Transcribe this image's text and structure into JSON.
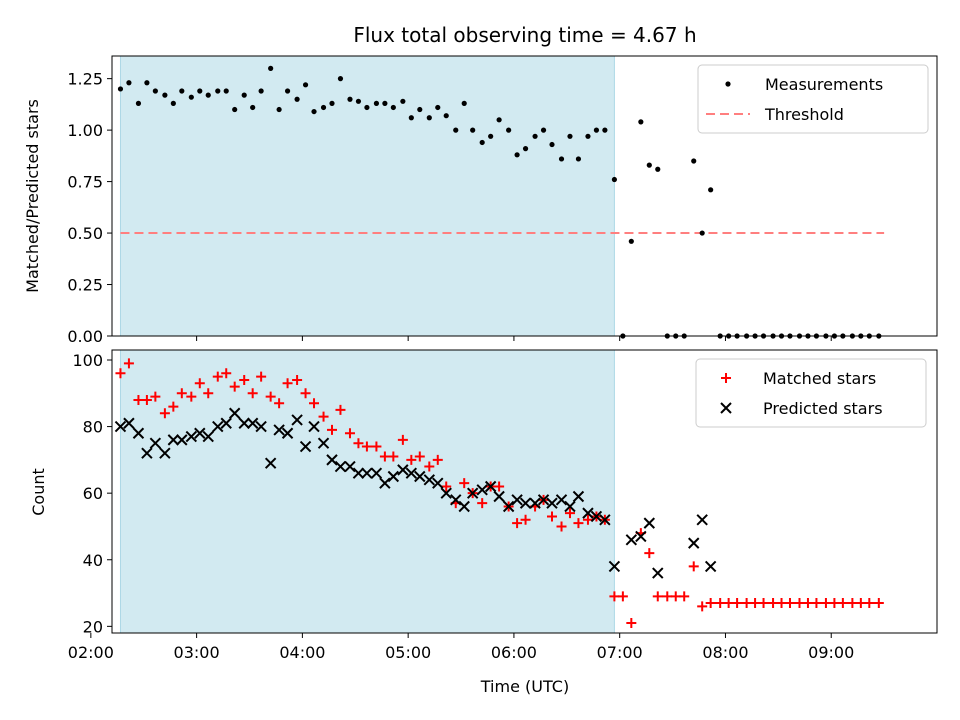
{
  "title": "Flux total observing time = 4.67 h",
  "colors": {
    "shade": "#add8e6",
    "measurement": "#000000",
    "threshold": "#ff7f7f",
    "matched": "#ff0000",
    "predicted": "#000000"
  },
  "chart_data": [
    {
      "type": "scatter",
      "name": "ratio-panel",
      "ylabel": "Matched/Predicted stars",
      "xlabel": "",
      "xlim": [
        2.2,
        10.0
      ],
      "ylim": [
        0.0,
        1.36
      ],
      "yticks": [
        0.0,
        0.25,
        0.5,
        0.75,
        1.0,
        1.25
      ],
      "ytick_labels": [
        "0.00",
        "0.25",
        "0.50",
        "0.75",
        "1.00",
        "1.25"
      ],
      "xticks": [
        2,
        3,
        4,
        5,
        6,
        7,
        8,
        9
      ],
      "shaded_region": [
        2.28,
        6.95
      ],
      "legend": {
        "placement": "top-right",
        "entries": [
          "Measurements",
          "Threshold"
        ]
      },
      "threshold": {
        "name": "Threshold",
        "value": 0.5,
        "x": [
          2.28,
          9.5
        ]
      },
      "series": [
        {
          "name": "Measurements",
          "marker": "dot",
          "x": [
            2.28,
            2.36,
            2.45,
            2.53,
            2.61,
            2.7,
            2.78,
            2.86,
            2.95,
            3.03,
            3.11,
            3.2,
            3.28,
            3.36,
            3.45,
            3.53,
            3.61,
            3.7,
            3.78,
            3.86,
            3.95,
            4.03,
            4.11,
            4.2,
            4.28,
            4.36,
            4.45,
            4.53,
            4.61,
            4.7,
            4.78,
            4.86,
            4.95,
            5.03,
            5.11,
            5.2,
            5.28,
            5.36,
            5.45,
            5.53,
            5.61,
            5.7,
            5.78,
            5.86,
            5.95,
            6.03,
            6.11,
            6.2,
            6.28,
            6.36,
            6.45,
            6.53,
            6.61,
            6.7,
            6.78,
            6.86,
            6.95,
            7.03,
            7.11,
            7.2,
            7.28,
            7.36,
            7.45,
            7.53,
            7.61,
            7.7,
            7.78,
            7.86,
            7.95,
            8.03,
            8.11,
            8.2,
            8.28,
            8.36,
            8.45,
            8.53,
            8.61,
            8.7,
            8.78,
            8.86,
            8.95,
            9.03,
            9.11,
            9.2,
            9.28,
            9.36,
            9.45
          ],
          "y": [
            1.2,
            1.23,
            1.13,
            1.23,
            1.19,
            1.17,
            1.13,
            1.19,
            1.16,
            1.19,
            1.17,
            1.19,
            1.19,
            1.1,
            1.17,
            1.11,
            1.19,
            1.3,
            1.1,
            1.19,
            1.15,
            1.22,
            1.09,
            1.11,
            1.13,
            1.25,
            1.15,
            1.14,
            1.11,
            1.13,
            1.13,
            1.11,
            1.14,
            1.06,
            1.1,
            1.06,
            1.11,
            1.07,
            1.0,
            1.13,
            1.0,
            0.94,
            0.97,
            1.05,
            1.0,
            0.88,
            0.91,
            0.97,
            1.0,
            0.93,
            0.86,
            0.97,
            0.86,
            0.97,
            1.0,
            1.0,
            0.76,
            0.0,
            0.46,
            1.04,
            0.83,
            0.81,
            0.0,
            0.0,
            0.0,
            0.85,
            0.5,
            0.71,
            0.0,
            0.0,
            0.0,
            0.0,
            0.0,
            0.0,
            0.0,
            0.0,
            0.0,
            0.0,
            0.0,
            0.0,
            0.0,
            0.0,
            0.0,
            0.0,
            0.0,
            0.0,
            0.0
          ]
        }
      ]
    },
    {
      "type": "scatter",
      "name": "count-panel",
      "ylabel": "Count",
      "xlabel": "Time (UTC)",
      "xlim": [
        2.2,
        10.0
      ],
      "ylim": [
        18,
        103
      ],
      "yticks": [
        20,
        40,
        60,
        80,
        100
      ],
      "ytick_labels": [
        "20",
        "40",
        "60",
        "80",
        "100"
      ],
      "xticks": [
        2,
        3,
        4,
        5,
        6,
        7,
        8,
        9
      ],
      "xtick_labels": [
        "02:00",
        "03:00",
        "04:00",
        "05:00",
        "06:00",
        "07:00",
        "08:00",
        "09:00"
      ],
      "shaded_region": [
        2.28,
        6.95
      ],
      "legend": {
        "placement": "top-right",
        "entries": [
          "Matched stars",
          "Predicted stars"
        ]
      },
      "series": [
        {
          "name": "Matched stars",
          "marker": "plus",
          "x": [
            2.28,
            2.36,
            2.45,
            2.53,
            2.61,
            2.7,
            2.78,
            2.86,
            2.95,
            3.03,
            3.11,
            3.2,
            3.28,
            3.36,
            3.45,
            3.53,
            3.61,
            3.7,
            3.78,
            3.86,
            3.95,
            4.03,
            4.11,
            4.2,
            4.28,
            4.36,
            4.45,
            4.53,
            4.61,
            4.7,
            4.78,
            4.86,
            4.95,
            5.03,
            5.11,
            5.2,
            5.28,
            5.36,
            5.45,
            5.53,
            5.61,
            5.7,
            5.78,
            5.86,
            5.95,
            6.03,
            6.11,
            6.2,
            6.28,
            6.36,
            6.45,
            6.53,
            6.61,
            6.7,
            6.78,
            6.86,
            6.95,
            7.03,
            7.11,
            7.2,
            7.28,
            7.36,
            7.45,
            7.53,
            7.61,
            7.7,
            7.78,
            7.86,
            7.95,
            8.03,
            8.11,
            8.2,
            8.28,
            8.36,
            8.45,
            8.53,
            8.61,
            8.7,
            8.78,
            8.86,
            8.95,
            9.03,
            9.11,
            9.2,
            9.28,
            9.36,
            9.45
          ],
          "y": [
            96,
            99,
            88,
            88,
            89,
            84,
            86,
            90,
            89,
            93,
            90,
            95,
            96,
            92,
            94,
            90,
            95,
            89,
            87,
            93,
            94,
            90,
            87,
            83,
            79,
            85,
            78,
            75,
            74,
            74,
            71,
            71,
            76,
            70,
            71,
            68,
            70,
            62,
            57,
            63,
            60,
            57,
            62,
            62,
            56,
            51,
            52,
            56,
            58,
            53,
            50,
            54,
            51,
            52,
            53,
            52,
            29,
            29,
            21,
            48,
            42,
            29,
            29,
            29,
            29,
            38,
            26,
            27,
            27,
            27,
            27,
            27,
            27,
            27,
            27,
            27,
            27,
            27,
            27,
            27,
            27,
            27,
            27,
            27,
            27,
            27,
            27
          ]
        },
        {
          "name": "Predicted stars",
          "marker": "x",
          "x": [
            2.28,
            2.36,
            2.45,
            2.53,
            2.61,
            2.7,
            2.78,
            2.86,
            2.95,
            3.03,
            3.11,
            3.2,
            3.28,
            3.36,
            3.45,
            3.53,
            3.61,
            3.7,
            3.78,
            3.86,
            3.95,
            4.03,
            4.11,
            4.2,
            4.28,
            4.36,
            4.45,
            4.53,
            4.61,
            4.7,
            4.78,
            4.86,
            4.95,
            5.03,
            5.11,
            5.2,
            5.28,
            5.36,
            5.45,
            5.53,
            5.61,
            5.7,
            5.78,
            5.86,
            5.95,
            6.03,
            6.11,
            6.2,
            6.28,
            6.36,
            6.45,
            6.53,
            6.61,
            6.7,
            6.78,
            6.86,
            6.95,
            7.11,
            7.2,
            7.28,
            7.36,
            7.7,
            7.78,
            7.86
          ],
          "y": [
            80,
            81,
            78,
            72,
            75,
            72,
            76,
            76,
            77,
            78,
            77,
            80,
            81,
            84,
            81,
            81,
            80,
            69,
            79,
            78,
            82,
            74,
            80,
            75,
            70,
            68,
            68,
            66,
            66,
            66,
            63,
            65,
            67,
            66,
            65,
            64,
            63,
            60,
            58,
            56,
            60,
            61,
            62,
            59,
            56,
            58,
            57,
            57,
            58,
            57,
            58,
            56,
            59,
            54,
            53,
            52,
            38,
            46,
            47,
            51,
            36,
            45,
            52,
            38
          ]
        }
      ]
    }
  ]
}
